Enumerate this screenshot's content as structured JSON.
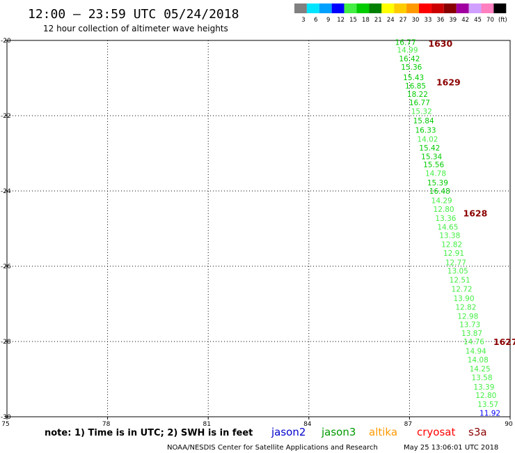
{
  "header": {
    "title": "12:00 – 23:59 UTC 05/24/2018",
    "subtitle": "12 hour collection of altimeter wave heights"
  },
  "color_scale": {
    "labels": [
      "3",
      "6",
      "9",
      "12",
      "15",
      "18",
      "21",
      "24",
      "27",
      "30",
      "33",
      "36",
      "39",
      "42",
      "45",
      "70",
      "(ft)"
    ],
    "colors": [
      "#808080",
      "#00e5ff",
      "#00a0ff",
      "#0000ff",
      "#44ee44",
      "#00cc00",
      "#008000",
      "#ffff00",
      "#ffcc00",
      "#ff9900",
      "#ff0000",
      "#cc0000",
      "#880000",
      "#a000a0",
      "#d0a0ff",
      "#ff80c0",
      "#000000"
    ]
  },
  "chart_data": {
    "type": "scatter",
    "xlim": [
      75,
      90
    ],
    "ylim": [
      -30,
      -20
    ],
    "xticks": [
      "75",
      "78",
      "81",
      "84",
      "87",
      "90"
    ],
    "xtick_values": [
      75,
      78,
      81,
      84,
      87,
      90
    ],
    "yticks": [
      "-20",
      "-22",
      "-24",
      "-26",
      "-28",
      "-30"
    ],
    "ytick_values": [
      -20,
      -22,
      -24,
      -26,
      -28,
      -30
    ],
    "grid": true,
    "points": [
      {
        "x": 86.88,
        "y": -20.05,
        "label": "16.77",
        "color": "#00cc00"
      },
      {
        "x": 86.94,
        "y": -20.25,
        "label": "14.99",
        "color": "#44ee44"
      },
      {
        "x": 87.0,
        "y": -20.48,
        "label": "16.42",
        "color": "#00cc00"
      },
      {
        "x": 87.06,
        "y": -20.7,
        "label": "15.36",
        "color": "#00cc00"
      },
      {
        "x": 87.12,
        "y": -20.98,
        "label": "15.43",
        "color": "#00cc00"
      },
      {
        "x": 87.18,
        "y": -21.2,
        "label": "16.85",
        "color": "#00cc00"
      },
      {
        "x": 87.24,
        "y": -21.43,
        "label": "18.22",
        "color": "#00cc00"
      },
      {
        "x": 87.3,
        "y": -21.65,
        "label": "16.77",
        "color": "#00cc00"
      },
      {
        "x": 87.36,
        "y": -21.88,
        "label": "15.32",
        "color": "#44ee44"
      },
      {
        "x": 87.42,
        "y": -22.13,
        "label": "15.84",
        "color": "#00cc00"
      },
      {
        "x": 87.48,
        "y": -22.38,
        "label": "16.33",
        "color": "#00cc00"
      },
      {
        "x": 87.54,
        "y": -22.62,
        "label": "14.02",
        "color": "#44ee44"
      },
      {
        "x": 87.6,
        "y": -22.85,
        "label": "15.42",
        "color": "#00cc00"
      },
      {
        "x": 87.66,
        "y": -23.08,
        "label": "15.34",
        "color": "#00cc00"
      },
      {
        "x": 87.72,
        "y": -23.3,
        "label": "15.56",
        "color": "#00cc00"
      },
      {
        "x": 87.78,
        "y": -23.53,
        "label": "14.78",
        "color": "#44ee44"
      },
      {
        "x": 87.84,
        "y": -23.78,
        "label": "15.39",
        "color": "#00cc00"
      },
      {
        "x": 87.9,
        "y": -24.0,
        "label": "16.48",
        "color": "#00cc00"
      },
      {
        "x": 87.96,
        "y": -24.25,
        "label": "14.29",
        "color": "#44ee44"
      },
      {
        "x": 88.02,
        "y": -24.48,
        "label": "12.80",
        "color": "#44ee44"
      },
      {
        "x": 88.08,
        "y": -24.72,
        "label": "13.36",
        "color": "#44ee44"
      },
      {
        "x": 88.14,
        "y": -24.95,
        "label": "14.65",
        "color": "#44ee44"
      },
      {
        "x": 88.2,
        "y": -25.18,
        "label": "13.38",
        "color": "#44ee44"
      },
      {
        "x": 88.26,
        "y": -25.42,
        "label": "12.82",
        "color": "#44ee44"
      },
      {
        "x": 88.32,
        "y": -25.65,
        "label": "12.91",
        "color": "#44ee44"
      },
      {
        "x": 88.38,
        "y": -25.9,
        "label": "12.77",
        "color": "#44ee44"
      },
      {
        "x": 88.44,
        "y": -26.12,
        "label": "13.05",
        "color": "#44ee44"
      },
      {
        "x": 88.5,
        "y": -26.36,
        "label": "12.51",
        "color": "#44ee44"
      },
      {
        "x": 88.56,
        "y": -26.6,
        "label": "12.72",
        "color": "#44ee44"
      },
      {
        "x": 88.62,
        "y": -26.85,
        "label": "13.90",
        "color": "#44ee44"
      },
      {
        "x": 88.68,
        "y": -27.08,
        "label": "12.82",
        "color": "#44ee44"
      },
      {
        "x": 88.74,
        "y": -27.32,
        "label": "12.98",
        "color": "#44ee44"
      },
      {
        "x": 88.8,
        "y": -27.55,
        "label": "13.73",
        "color": "#44ee44"
      },
      {
        "x": 88.86,
        "y": -27.78,
        "label": "13.87",
        "color": "#44ee44"
      },
      {
        "x": 88.92,
        "y": -28.0,
        "label": "14.76",
        "color": "#44ee44"
      },
      {
        "x": 88.98,
        "y": -28.25,
        "label": "14.94",
        "color": "#44ee44"
      },
      {
        "x": 89.04,
        "y": -28.48,
        "label": "14.08",
        "color": "#44ee44"
      },
      {
        "x": 89.1,
        "y": -28.72,
        "label": "14.25",
        "color": "#44ee44"
      },
      {
        "x": 89.16,
        "y": -28.95,
        "label": "13.58",
        "color": "#44ee44"
      },
      {
        "x": 89.22,
        "y": -29.2,
        "label": "13.39",
        "color": "#44ee44"
      },
      {
        "x": 89.28,
        "y": -29.43,
        "label": "12.80",
        "color": "#44ee44"
      },
      {
        "x": 89.34,
        "y": -29.67,
        "label": "13.57",
        "color": "#44ee44"
      },
      {
        "x": 89.4,
        "y": -29.9,
        "label": "11.92",
        "color": "#0000ff"
      }
    ],
    "pass_labels": [
      {
        "x": 87.56,
        "y": -20.07,
        "label": "1630"
      },
      {
        "x": 87.8,
        "y": -21.1,
        "label": "1629"
      },
      {
        "x": 88.6,
        "y": -24.58,
        "label": "1628"
      },
      {
        "x": 89.5,
        "y": -28.0,
        "label": "1627"
      }
    ]
  },
  "footer": {
    "note": "note: 1) Time is in UTC; 2) SWH is in feet",
    "satellites": [
      {
        "name": "jason2",
        "color": "#0000cc"
      },
      {
        "name": "jason3",
        "color": "#009900"
      },
      {
        "name": "altika",
        "color": "#ff9900"
      },
      {
        "name": "cryosat",
        "color": "#ff0000"
      },
      {
        "name": "s3a",
        "color": "#8b0000"
      }
    ],
    "credit": "NOAA/NESDIS Center for Satellite Applications and Research",
    "timestamp": "May 25 13:06:01 UTC 2018"
  }
}
